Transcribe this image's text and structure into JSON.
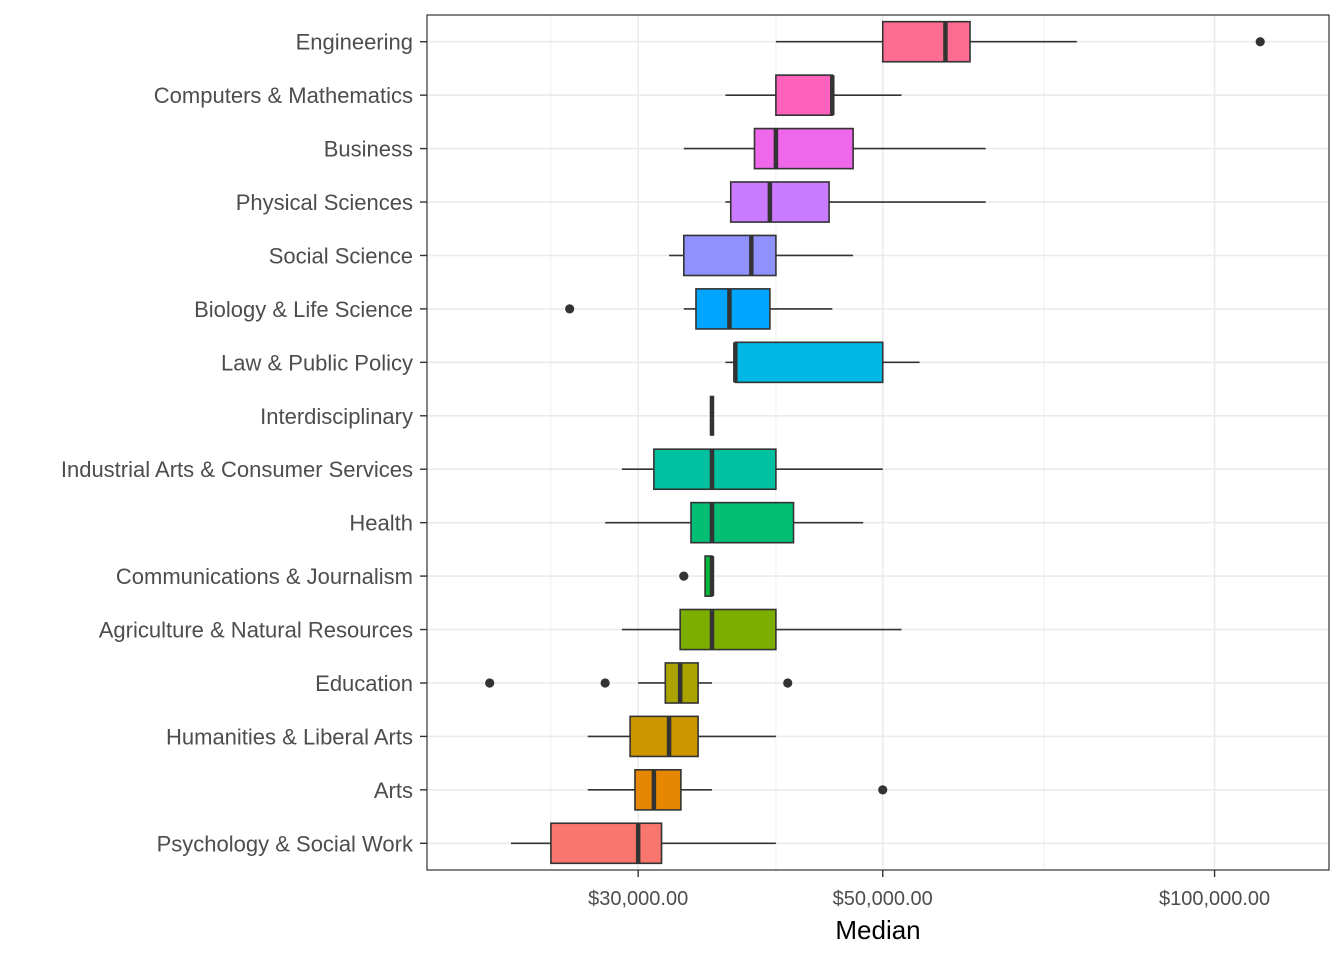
{
  "chart_data": {
    "type": "boxplot",
    "xlabel": "Median",
    "ylabel": "",
    "x_scale": "log10",
    "xlim": [
      19300,
      127000
    ],
    "x_ticks": [
      30000,
      50000,
      100000
    ],
    "x_tick_labels": [
      "$30,000.00",
      "$50,000.00",
      "$100,000.00"
    ],
    "x_minor_gridlines": [
      25000,
      40000,
      70000
    ],
    "grid": true,
    "legend": "none",
    "series": [
      {
        "category": "Engineering",
        "color": "#FF6C91",
        "whisker_low": 40000,
        "q1": 50000,
        "median": 57000,
        "q3": 60000,
        "whisker_high": 75000,
        "outliers": [
          110000
        ]
      },
      {
        "category": "Computers & Mathematics",
        "color": "#FF62BC",
        "whisker_low": 36000,
        "q1": 40000,
        "median": 45000,
        "q3": 45000,
        "whisker_high": 52000,
        "outliers": []
      },
      {
        "category": "Business",
        "color": "#EF67EB",
        "whisker_low": 33000,
        "q1": 38250,
        "median": 40000,
        "q3": 47000,
        "whisker_high": 62000,
        "outliers": []
      },
      {
        "category": "Physical Sciences",
        "color": "#CB7BFF",
        "whisker_low": 36000,
        "q1": 36400,
        "median": 39500,
        "q3": 44700,
        "whisker_high": 62000,
        "outliers": []
      },
      {
        "category": "Social Science",
        "color": "#8F91FF",
        "whisker_low": 32000,
        "q1": 33000,
        "median": 38000,
        "q3": 40000,
        "whisker_high": 47000,
        "outliers": []
      },
      {
        "category": "Biology & Life Science",
        "color": "#00A5FF",
        "whisker_low": 33000,
        "q1": 33850,
        "median": 36300,
        "q3": 39500,
        "whisker_high": 45000,
        "outliers": [
          26000
        ]
      },
      {
        "category": "Law & Public Policy",
        "color": "#00B8E5",
        "whisker_low": 36000,
        "q1": 36750,
        "median": 36750,
        "q3": 50000,
        "whisker_high": 54000,
        "outliers": []
      },
      {
        "category": "Interdisciplinary",
        "color": "#00C1AA",
        "whisker_low": 35000,
        "q1": 35000,
        "median": 35000,
        "q3": 35000,
        "whisker_high": 35000,
        "outliers": []
      },
      {
        "category": "Industrial Arts & Consumer Services",
        "color": "#00C19F",
        "whisker_low": 29000,
        "q1": 31000,
        "median": 35000,
        "q3": 40000,
        "whisker_high": 50000,
        "outliers": []
      },
      {
        "category": "Health",
        "color": "#00BF74",
        "whisker_low": 28000,
        "q1": 33500,
        "median": 35000,
        "q3": 41500,
        "whisker_high": 48000,
        "outliers": []
      },
      {
        "category": "Communications & Journalism",
        "color": "#00BA38",
        "whisker_low": 34500,
        "q1": 34500,
        "median": 35000,
        "q3": 35000,
        "whisker_high": 35000,
        "outliers": [
          33000
        ]
      },
      {
        "category": "Agriculture & Natural Resources",
        "color": "#7CAE00",
        "whisker_low": 29000,
        "q1": 32750,
        "median": 35000,
        "q3": 40000,
        "whisker_high": 52000,
        "outliers": []
      },
      {
        "category": "Education",
        "color": "#ABA300",
        "whisker_low": 30000,
        "q1": 31750,
        "median": 32750,
        "q3": 34000,
        "whisker_high": 35000,
        "outliers": [
          22000,
          28000,
          41000
        ]
      },
      {
        "category": "Humanities & Liberal Arts",
        "color": "#CC9600",
        "whisker_low": 27000,
        "q1": 29500,
        "median": 32000,
        "q3": 34000,
        "whisker_high": 40000,
        "outliers": []
      },
      {
        "category": "Arts",
        "color": "#E58700",
        "whisker_low": 27000,
        "q1": 29800,
        "median": 31000,
        "q3": 32800,
        "whisker_high": 35000,
        "outliers": [
          50000
        ]
      },
      {
        "category": "Psychology & Social Work",
        "color": "#F8766D",
        "whisker_low": 23000,
        "q1": 25000,
        "median": 30000,
        "q3": 31500,
        "whisker_high": 40000,
        "outliers": []
      }
    ]
  }
}
